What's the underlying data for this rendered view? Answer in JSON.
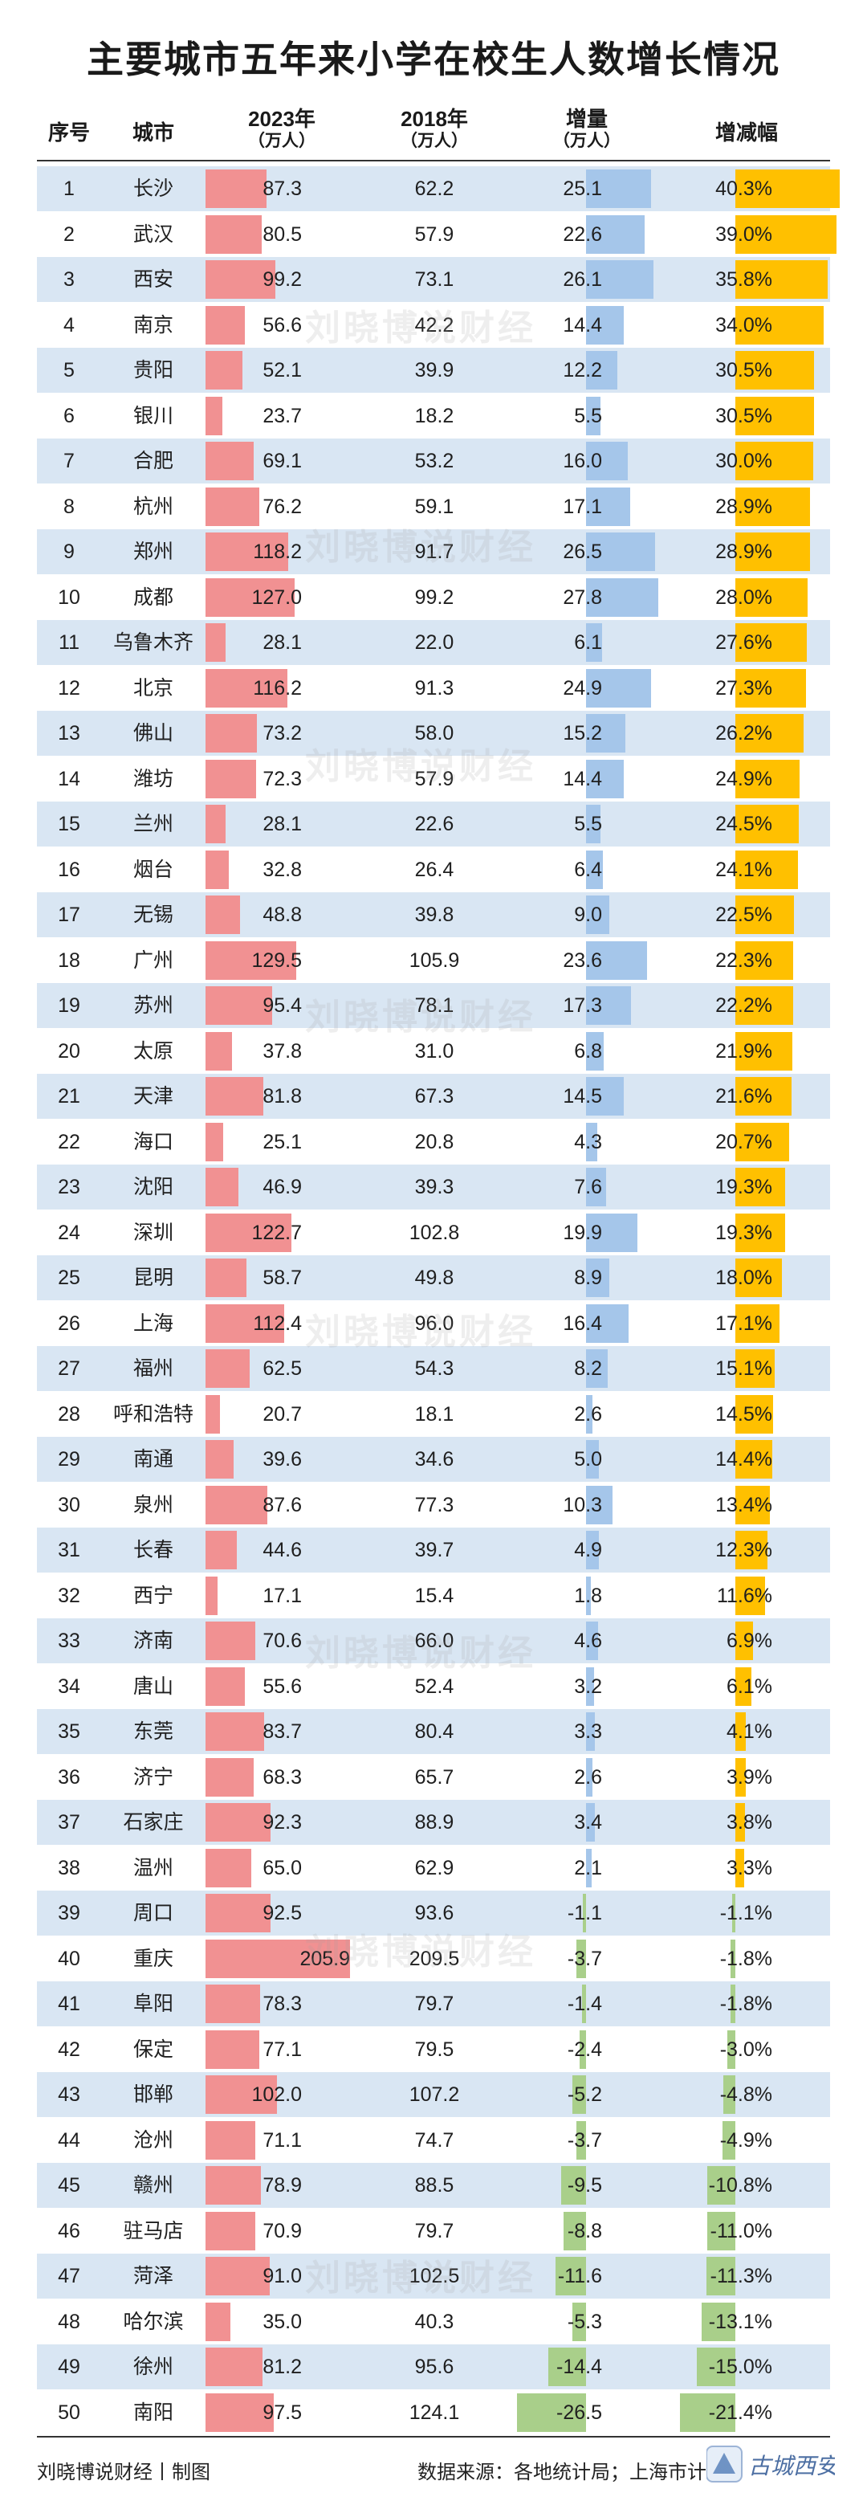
{
  "title": "主要城市五年来小学在校生人数增长情况",
  "headers": {
    "index": "序号",
    "city": "城市",
    "y2023": "2023年",
    "y2023_unit": "（万人）",
    "y2018": "2018年",
    "y2018_unit": "（万人）",
    "delta": "增量",
    "delta_unit": "（万人）",
    "rate": "增减幅"
  },
  "watermark": "刘晓博说财经",
  "footer": {
    "left": "刘晓博说财经丨制图",
    "right": "数据来源：各地统计局；上海市计算"
  },
  "logo_text": "古城西安",
  "colors": {
    "bar_2023": "#f19192",
    "bar_delta_positive": "#a5c6ea",
    "bar_delta_negative": "#a9cf8a",
    "bar_rate_positive": "#ffc000",
    "bar_rate_negative": "#a9cf8a",
    "row_stripe": "#d9e6f3"
  },
  "chart_data": {
    "type": "table",
    "columns": [
      "序号",
      "城市",
      "2023年（万人）",
      "2018年（万人）",
      "增量（万人）",
      "增减幅"
    ],
    "rows": [
      [
        1,
        "长沙",
        "87.3",
        "62.2",
        "25.1",
        "40.3%"
      ],
      [
        2,
        "武汉",
        "80.5",
        "57.9",
        "22.6",
        "39.0%"
      ],
      [
        3,
        "西安",
        "99.2",
        "73.1",
        "26.1",
        "35.8%"
      ],
      [
        4,
        "南京",
        "56.6",
        "42.2",
        "14.4",
        "34.0%"
      ],
      [
        5,
        "贵阳",
        "52.1",
        "39.9",
        "12.2",
        "30.5%"
      ],
      [
        6,
        "银川",
        "23.7",
        "18.2",
        "5.5",
        "30.5%"
      ],
      [
        7,
        "合肥",
        "69.1",
        "53.2",
        "16.0",
        "30.0%"
      ],
      [
        8,
        "杭州",
        "76.2",
        "59.1",
        "17.1",
        "28.9%"
      ],
      [
        9,
        "郑州",
        "118.2",
        "91.7",
        "26.5",
        "28.9%"
      ],
      [
        10,
        "成都",
        "127.0",
        "99.2",
        "27.8",
        "28.0%"
      ],
      [
        11,
        "乌鲁木齐",
        "28.1",
        "22.0",
        "6.1",
        "27.6%"
      ],
      [
        12,
        "北京",
        "116.2",
        "91.3",
        "24.9",
        "27.3%"
      ],
      [
        13,
        "佛山",
        "73.2",
        "58.0",
        "15.2",
        "26.2%"
      ],
      [
        14,
        "潍坊",
        "72.3",
        "57.9",
        "14.4",
        "24.9%"
      ],
      [
        15,
        "兰州",
        "28.1",
        "22.6",
        "5.5",
        "24.5%"
      ],
      [
        16,
        "烟台",
        "32.8",
        "26.4",
        "6.4",
        "24.1%"
      ],
      [
        17,
        "无锡",
        "48.8",
        "39.8",
        "9.0",
        "22.5%"
      ],
      [
        18,
        "广州",
        "129.5",
        "105.9",
        "23.6",
        "22.3%"
      ],
      [
        19,
        "苏州",
        "95.4",
        "78.1",
        "17.3",
        "22.2%"
      ],
      [
        20,
        "太原",
        "37.8",
        "31.0",
        "6.8",
        "21.9%"
      ],
      [
        21,
        "天津",
        "81.8",
        "67.3",
        "14.5",
        "21.6%"
      ],
      [
        22,
        "海口",
        "25.1",
        "20.8",
        "4.3",
        "20.7%"
      ],
      [
        23,
        "沈阳",
        "46.9",
        "39.3",
        "7.6",
        "19.3%"
      ],
      [
        24,
        "深圳",
        "122.7",
        "102.8",
        "19.9",
        "19.3%"
      ],
      [
        25,
        "昆明",
        "58.7",
        "49.8",
        "8.9",
        "18.0%"
      ],
      [
        26,
        "上海",
        "112.4",
        "96.0",
        "16.4",
        "17.1%"
      ],
      [
        27,
        "福州",
        "62.5",
        "54.3",
        "8.2",
        "15.1%"
      ],
      [
        28,
        "呼和浩特",
        "20.7",
        "18.1",
        "2.6",
        "14.5%"
      ],
      [
        29,
        "南通",
        "39.6",
        "34.6",
        "5.0",
        "14.4%"
      ],
      [
        30,
        "泉州",
        "87.6",
        "77.3",
        "10.3",
        "13.4%"
      ],
      [
        31,
        "长春",
        "44.6",
        "39.7",
        "4.9",
        "12.3%"
      ],
      [
        32,
        "西宁",
        "17.1",
        "15.4",
        "1.8",
        "11.6%"
      ],
      [
        33,
        "济南",
        "70.6",
        "66.0",
        "4.6",
        "6.9%"
      ],
      [
        34,
        "唐山",
        "55.6",
        "52.4",
        "3.2",
        "6.1%"
      ],
      [
        35,
        "东莞",
        "83.7",
        "80.4",
        "3.3",
        "4.1%"
      ],
      [
        36,
        "济宁",
        "68.3",
        "65.7",
        "2.6",
        "3.9%"
      ],
      [
        37,
        "石家庄",
        "92.3",
        "88.9",
        "3.4",
        "3.8%"
      ],
      [
        38,
        "温州",
        "65.0",
        "62.9",
        "2.1",
        "3.3%"
      ],
      [
        39,
        "周口",
        "92.5",
        "93.6",
        "-1.1",
        "-1.1%"
      ],
      [
        40,
        "重庆",
        "205.9",
        "209.5",
        "-3.7",
        "-1.8%"
      ],
      [
        41,
        "阜阳",
        "78.3",
        "79.7",
        "-1.4",
        "-1.8%"
      ],
      [
        42,
        "保定",
        "77.1",
        "79.5",
        "-2.4",
        "-3.0%"
      ],
      [
        43,
        "邯郸",
        "102.0",
        "107.2",
        "-5.2",
        "-4.8%"
      ],
      [
        44,
        "沧州",
        "71.1",
        "74.7",
        "-3.7",
        "-4.9%"
      ],
      [
        45,
        "赣州",
        "78.9",
        "88.5",
        "-9.5",
        "-10.8%"
      ],
      [
        46,
        "驻马店",
        "70.9",
        "79.7",
        "-8.8",
        "-11.0%"
      ],
      [
        47,
        "菏泽",
        "91.0",
        "102.5",
        "-11.6",
        "-11.3%"
      ],
      [
        48,
        "哈尔滨",
        "35.0",
        "40.3",
        "-5.3",
        "-13.1%"
      ],
      [
        49,
        "徐州",
        "81.2",
        "95.6",
        "-14.4",
        "-15.0%"
      ],
      [
        50,
        "南阳",
        "97.5",
        "124.1",
        "-26.5",
        "-21.4%"
      ]
    ]
  }
}
